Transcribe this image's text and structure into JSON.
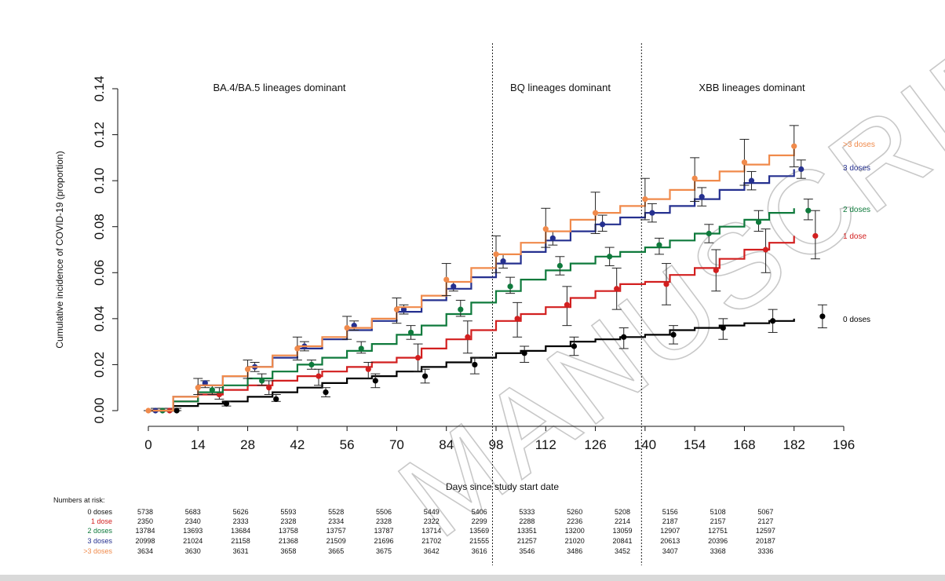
{
  "chart_data": {
    "type": "line",
    "title": "",
    "xlabel": "Days since study start date",
    "ylabel": "Cumulative incidence of COVID-19 (proportion)",
    "xlim": [
      0,
      196
    ],
    "ylim": [
      0,
      0.14
    ],
    "x_ticks": [
      0,
      14,
      28,
      42,
      56,
      70,
      84,
      98,
      112,
      126,
      140,
      154,
      168,
      182,
      196
    ],
    "y_ticks": [
      0.0,
      0.02,
      0.04,
      0.06,
      0.08,
      0.1,
      0.12,
      0.14
    ],
    "y_tick_labels": [
      "0.00",
      "0.02",
      "0.04",
      "0.06",
      "0.08",
      "0.10",
      "0.12",
      "0.14"
    ],
    "grid": false,
    "legend": "labels at right end of lines",
    "periods": [
      {
        "label": "BA.4/BA.5 lineages dominant",
        "start": 0,
        "end": 97
      },
      {
        "label": "BQ lineages dominant",
        "start": 97,
        "end": 139
      },
      {
        "label": "XBB lineages dominant",
        "start": 139,
        "end": 196
      }
    ],
    "dividers": [
      97,
      139
    ],
    "series": [
      {
        "name": "0 doses",
        "color": "#000000",
        "curve": [
          [
            0,
            0
          ],
          [
            7,
            0.002
          ],
          [
            14,
            0.003
          ],
          [
            21,
            0.004
          ],
          [
            28,
            0.006
          ],
          [
            35,
            0.008
          ],
          [
            42,
            0.01
          ],
          [
            49,
            0.012
          ],
          [
            56,
            0.014
          ],
          [
            63,
            0.015
          ],
          [
            70,
            0.017
          ],
          [
            77,
            0.019
          ],
          [
            84,
            0.021
          ],
          [
            91,
            0.023
          ],
          [
            98,
            0.025
          ],
          [
            105,
            0.026
          ],
          [
            112,
            0.028
          ],
          [
            119,
            0.03
          ],
          [
            126,
            0.031
          ],
          [
            133,
            0.032
          ],
          [
            140,
            0.033
          ],
          [
            147,
            0.035
          ],
          [
            154,
            0.036
          ],
          [
            161,
            0.037
          ],
          [
            168,
            0.038
          ],
          [
            175,
            0.039
          ],
          [
            182,
            0.04
          ]
        ],
        "points": [
          [
            8,
            0.0,
            0.0,
            0.001
          ],
          [
            22,
            0.003,
            0.002,
            0.004
          ],
          [
            36,
            0.005,
            0.004,
            0.007
          ],
          [
            50,
            0.008,
            0.006,
            0.01
          ],
          [
            64,
            0.013,
            0.01,
            0.016
          ],
          [
            78,
            0.015,
            0.012,
            0.018
          ],
          [
            92,
            0.02,
            0.016,
            0.023
          ],
          [
            106,
            0.025,
            0.021,
            0.028
          ],
          [
            120,
            0.028,
            0.024,
            0.032
          ],
          [
            134,
            0.032,
            0.027,
            0.036
          ],
          [
            148,
            0.033,
            0.029,
            0.037
          ],
          [
            162,
            0.036,
            0.031,
            0.04
          ],
          [
            176,
            0.039,
            0.034,
            0.044
          ],
          [
            190,
            0.041,
            0.036,
            0.046
          ]
        ],
        "end_label": "0 doses",
        "risk": [
          "5738",
          "5683",
          "5626",
          "5593",
          "5528",
          "5506",
          "5449",
          "5406",
          "5333",
          "5260",
          "5208",
          "5156",
          "5108",
          "5067"
        ]
      },
      {
        "name": "1 dose",
        "color": "#d21f1f",
        "curve": [
          [
            0,
            0
          ],
          [
            7,
            0.004
          ],
          [
            14,
            0.007
          ],
          [
            21,
            0.009
          ],
          [
            28,
            0.011
          ],
          [
            35,
            0.013
          ],
          [
            42,
            0.015
          ],
          [
            49,
            0.017
          ],
          [
            56,
            0.019
          ],
          [
            63,
            0.021
          ],
          [
            70,
            0.023
          ],
          [
            77,
            0.027
          ],
          [
            84,
            0.031
          ],
          [
            91,
            0.035
          ],
          [
            98,
            0.039
          ],
          [
            105,
            0.042
          ],
          [
            112,
            0.045
          ],
          [
            119,
            0.049
          ],
          [
            126,
            0.052
          ],
          [
            133,
            0.055
          ],
          [
            140,
            0.056
          ],
          [
            147,
            0.059
          ],
          [
            154,
            0.062
          ],
          [
            161,
            0.066
          ],
          [
            168,
            0.07
          ],
          [
            175,
            0.073
          ],
          [
            182,
            0.076
          ]
        ],
        "points": [
          [
            6,
            0.0,
            0.0,
            0.001
          ],
          [
            20,
            0.007,
            0.005,
            0.01
          ],
          [
            34,
            0.01,
            0.007,
            0.013
          ],
          [
            48,
            0.015,
            0.011,
            0.018
          ],
          [
            62,
            0.018,
            0.014,
            0.021
          ],
          [
            76,
            0.023,
            0.017,
            0.029
          ],
          [
            90,
            0.032,
            0.025,
            0.039
          ],
          [
            104,
            0.04,
            0.032,
            0.047
          ],
          [
            118,
            0.046,
            0.037,
            0.054
          ],
          [
            132,
            0.053,
            0.044,
            0.062
          ],
          [
            146,
            0.055,
            0.046,
            0.064
          ],
          [
            160,
            0.061,
            0.052,
            0.07
          ],
          [
            174,
            0.07,
            0.06,
            0.079
          ],
          [
            188,
            0.076,
            0.066,
            0.087
          ]
        ],
        "end_label": "1 dose",
        "risk": [
          "2350",
          "2340",
          "2333",
          "2328",
          "2334",
          "2328",
          "2322",
          "2299",
          "2288",
          "2236",
          "2214",
          "2187",
          "2157",
          "2127"
        ]
      },
      {
        "name": "2 doses",
        "color": "#0f7a3c",
        "curve": [
          [
            0,
            0
          ],
          [
            7,
            0.004
          ],
          [
            14,
            0.008
          ],
          [
            21,
            0.011
          ],
          [
            28,
            0.014
          ],
          [
            35,
            0.017
          ],
          [
            42,
            0.02
          ],
          [
            49,
            0.023
          ],
          [
            56,
            0.026
          ],
          [
            63,
            0.029
          ],
          [
            70,
            0.033
          ],
          [
            77,
            0.037
          ],
          [
            84,
            0.042
          ],
          [
            91,
            0.047
          ],
          [
            98,
            0.052
          ],
          [
            105,
            0.057
          ],
          [
            112,
            0.061
          ],
          [
            119,
            0.064
          ],
          [
            126,
            0.067
          ],
          [
            133,
            0.069
          ],
          [
            140,
            0.071
          ],
          [
            147,
            0.074
          ],
          [
            154,
            0.077
          ],
          [
            161,
            0.08
          ],
          [
            168,
            0.083
          ],
          [
            175,
            0.086
          ],
          [
            182,
            0.088
          ]
        ],
        "points": [
          [
            4,
            0.0,
            0.0,
            0.001
          ],
          [
            18,
            0.009,
            0.007,
            0.011
          ],
          [
            32,
            0.013,
            0.011,
            0.016
          ],
          [
            46,
            0.02,
            0.018,
            0.022
          ],
          [
            60,
            0.027,
            0.025,
            0.03
          ],
          [
            74,
            0.034,
            0.031,
            0.037
          ],
          [
            88,
            0.044,
            0.041,
            0.048
          ],
          [
            102,
            0.054,
            0.051,
            0.058
          ],
          [
            116,
            0.063,
            0.059,
            0.067
          ],
          [
            130,
            0.067,
            0.063,
            0.071
          ],
          [
            144,
            0.072,
            0.068,
            0.075
          ],
          [
            158,
            0.077,
            0.073,
            0.081
          ],
          [
            172,
            0.082,
            0.078,
            0.087
          ],
          [
            186,
            0.087,
            0.083,
            0.092
          ]
        ],
        "end_label": "2 doses",
        "risk": [
          "13784",
          "13693",
          "13684",
          "13758",
          "13757",
          "13787",
          "13714",
          "13569",
          "13351",
          "13200",
          "13059",
          "12907",
          "12751",
          "12597"
        ]
      },
      {
        "name": "3 doses",
        "color": "#25308f",
        "curve": [
          [
            0,
            0
          ],
          [
            7,
            0.006
          ],
          [
            14,
            0.011
          ],
          [
            21,
            0.015
          ],
          [
            28,
            0.019
          ],
          [
            35,
            0.023
          ],
          [
            42,
            0.027
          ],
          [
            49,
            0.031
          ],
          [
            56,
            0.035
          ],
          [
            63,
            0.039
          ],
          [
            70,
            0.043
          ],
          [
            77,
            0.048
          ],
          [
            84,
            0.053
          ],
          [
            91,
            0.058
          ],
          [
            98,
            0.064
          ],
          [
            105,
            0.069
          ],
          [
            112,
            0.074
          ],
          [
            119,
            0.078
          ],
          [
            126,
            0.081
          ],
          [
            133,
            0.084
          ],
          [
            140,
            0.086
          ],
          [
            147,
            0.089
          ],
          [
            154,
            0.092
          ],
          [
            161,
            0.096
          ],
          [
            168,
            0.099
          ],
          [
            175,
            0.102
          ],
          [
            182,
            0.105
          ]
        ],
        "points": [
          [
            2,
            0.0,
            0.0,
            0.001
          ],
          [
            16,
            0.012,
            0.01,
            0.013
          ],
          [
            30,
            0.019,
            0.017,
            0.021
          ],
          [
            44,
            0.028,
            0.026,
            0.03
          ],
          [
            58,
            0.037,
            0.035,
            0.039
          ],
          [
            72,
            0.044,
            0.042,
            0.046
          ],
          [
            86,
            0.054,
            0.052,
            0.056
          ],
          [
            100,
            0.065,
            0.062,
            0.068
          ],
          [
            114,
            0.075,
            0.072,
            0.078
          ],
          [
            128,
            0.081,
            0.078,
            0.085
          ],
          [
            142,
            0.086,
            0.082,
            0.09
          ],
          [
            156,
            0.093,
            0.089,
            0.097
          ],
          [
            170,
            0.1,
            0.096,
            0.104
          ],
          [
            184,
            0.105,
            0.101,
            0.109
          ]
        ],
        "end_label": "3 doses",
        "risk": [
          "20998",
          "21024",
          "21158",
          "21368",
          "21509",
          "21696",
          "21702",
          "21555",
          "21257",
          "21020",
          "20841",
          "20613",
          "20396",
          "20187"
        ]
      },
      {
        "name": ">3 doses",
        "color": "#f08a4b",
        "curve": [
          [
            0,
            0
          ],
          [
            7,
            0.006
          ],
          [
            14,
            0.011
          ],
          [
            21,
            0.015
          ],
          [
            28,
            0.019
          ],
          [
            35,
            0.024
          ],
          [
            42,
            0.028
          ],
          [
            49,
            0.032
          ],
          [
            56,
            0.036
          ],
          [
            63,
            0.04
          ],
          [
            70,
            0.045
          ],
          [
            77,
            0.05
          ],
          [
            84,
            0.056
          ],
          [
            91,
            0.062
          ],
          [
            98,
            0.068
          ],
          [
            105,
            0.073
          ],
          [
            112,
            0.078
          ],
          [
            119,
            0.083
          ],
          [
            126,
            0.086
          ],
          [
            133,
            0.089
          ],
          [
            140,
            0.092
          ],
          [
            147,
            0.096
          ],
          [
            154,
            0.1
          ],
          [
            161,
            0.104
          ],
          [
            168,
            0.107
          ],
          [
            175,
            0.111
          ],
          [
            182,
            0.115
          ]
        ],
        "points": [
          [
            0,
            0.0,
            0.0,
            0.0
          ],
          [
            14,
            0.01,
            0.007,
            0.014
          ],
          [
            28,
            0.018,
            0.014,
            0.022
          ],
          [
            42,
            0.027,
            0.022,
            0.032
          ],
          [
            56,
            0.036,
            0.031,
            0.041
          ],
          [
            70,
            0.044,
            0.038,
            0.049
          ],
          [
            84,
            0.057,
            0.05,
            0.064
          ],
          [
            98,
            0.068,
            0.06,
            0.076
          ],
          [
            112,
            0.079,
            0.071,
            0.088
          ],
          [
            126,
            0.086,
            0.077,
            0.095
          ],
          [
            140,
            0.092,
            0.083,
            0.101
          ],
          [
            154,
            0.101,
            0.091,
            0.11
          ],
          [
            168,
            0.108,
            0.098,
            0.118
          ],
          [
            182,
            0.115,
            0.106,
            0.124
          ]
        ],
        "end_label": ">3 doses",
        "risk": [
          "3634",
          "3630",
          "3631",
          "3658",
          "3665",
          "3675",
          "3642",
          "3616",
          "3546",
          "3486",
          "3452",
          "3407",
          "3368",
          "3336"
        ]
      }
    ],
    "risk_table": {
      "title": "Numbers at risk:",
      "days": [
        0,
        14,
        28,
        42,
        56,
        70,
        84,
        98,
        112,
        126,
        140,
        154,
        168,
        182
      ]
    }
  },
  "watermark": "MANUSCRIPT"
}
